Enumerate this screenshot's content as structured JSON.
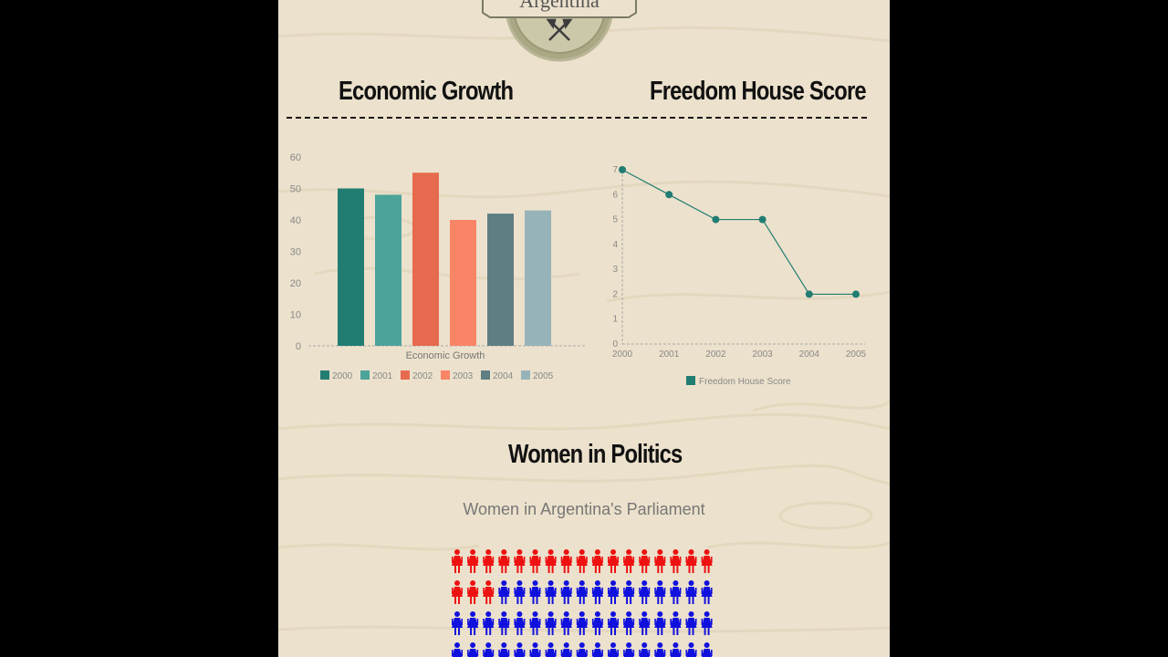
{
  "header": {
    "country_name": "Argentina"
  },
  "sections": {
    "economic_growth": "Economic Growth",
    "freedom_house": "Freedom House Score",
    "women_politics": "Women in Politics"
  },
  "chart_data": [
    {
      "type": "bar",
      "title": "",
      "xlabel": "Economic Growth",
      "ylabel": "",
      "ylim": [
        0,
        60
      ],
      "y_ticks": [
        0,
        10,
        20,
        30,
        40,
        50,
        60
      ],
      "categories": [
        "Economic Growth"
      ],
      "series": [
        {
          "name": "2000",
          "values": [
            50
          ],
          "color": "#217d72"
        },
        {
          "name": "2001",
          "values": [
            48
          ],
          "color": "#4ca39a"
        },
        {
          "name": "2002",
          "values": [
            55
          ],
          "color": "#e66a4e"
        },
        {
          "name": "2003",
          "values": [
            40
          ],
          "color": "#f98567"
        },
        {
          "name": "2004",
          "values": [
            42
          ],
          "color": "#5f7e83"
        },
        {
          "name": "2005",
          "values": [
            43
          ],
          "color": "#97b3ba"
        }
      ],
      "legend": "bottom",
      "grid": false
    },
    {
      "type": "line",
      "title": "",
      "xlabel": "",
      "ylabel": "",
      "x": [
        "2000",
        "2001",
        "2002",
        "2003",
        "2004",
        "2005"
      ],
      "ylim": [
        0,
        7
      ],
      "y_ticks": [
        0,
        1,
        2,
        3,
        4,
        5,
        6,
        7
      ],
      "series": [
        {
          "name": "Freedom House Score",
          "values": [
            7,
            6,
            5,
            5,
            2,
            2
          ],
          "color": "#217d72"
        }
      ],
      "legend": "bottom",
      "grid": false
    },
    {
      "type": "pictogram",
      "title": "Women in Argentina's Parliament",
      "rows_visible": 4,
      "per_row": 17,
      "highlight_count": 20,
      "highlight_color": "#ee1111",
      "base_color": "#1111dd"
    }
  ]
}
